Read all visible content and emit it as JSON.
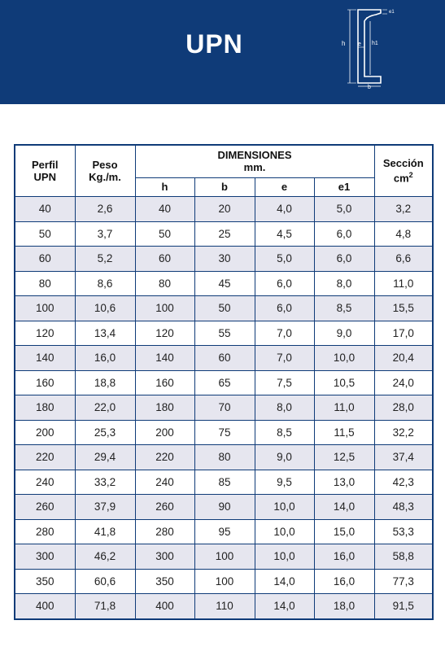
{
  "header": {
    "title": "UPN",
    "diagram_labels": {
      "e1": "e1",
      "h": "h",
      "e": "e",
      "h1": "h1",
      "b": "b",
      "r": "r"
    }
  },
  "table": {
    "col_perfil_line1": "Perfil",
    "col_perfil_line2": "UPN",
    "col_peso_line1": "Peso",
    "col_peso_line2": "Kg./m.",
    "col_dims_line1": "DIMENSIONES",
    "col_dims_line2": "mm.",
    "col_seccion_line1": "Sección",
    "col_seccion_line2": "cm",
    "col_seccion_sup": "2",
    "sub_h": "h",
    "sub_b": "b",
    "sub_e": "e",
    "sub_e1": "e1",
    "rows": [
      [
        "40",
        "2,6",
        "40",
        "20",
        "4,0",
        "5,0",
        "3,2"
      ],
      [
        "50",
        "3,7",
        "50",
        "25",
        "4,5",
        "6,0",
        "4,8"
      ],
      [
        "60",
        "5,2",
        "60",
        "30",
        "5,0",
        "6,0",
        "6,6"
      ],
      [
        "80",
        "8,6",
        "80",
        "45",
        "6,0",
        "8,0",
        "11,0"
      ],
      [
        "100",
        "10,6",
        "100",
        "50",
        "6,0",
        "8,5",
        "15,5"
      ],
      [
        "120",
        "13,4",
        "120",
        "55",
        "7,0",
        "9,0",
        "17,0"
      ],
      [
        "140",
        "16,0",
        "140",
        "60",
        "7,0",
        "10,0",
        "20,4"
      ],
      [
        "160",
        "18,8",
        "160",
        "65",
        "7,5",
        "10,5",
        "24,0"
      ],
      [
        "180",
        "22,0",
        "180",
        "70",
        "8,0",
        "11,0",
        "28,0"
      ],
      [
        "200",
        "25,3",
        "200",
        "75",
        "8,5",
        "11,5",
        "32,2"
      ],
      [
        "220",
        "29,4",
        "220",
        "80",
        "9,0",
        "12,5",
        "37,4"
      ],
      [
        "240",
        "33,2",
        "240",
        "85",
        "9,5",
        "13,0",
        "42,3"
      ],
      [
        "260",
        "37,9",
        "260",
        "90",
        "10,0",
        "14,0",
        "48,3"
      ],
      [
        "280",
        "41,8",
        "280",
        "95",
        "10,0",
        "15,0",
        "53,3"
      ],
      [
        "300",
        "46,2",
        "300",
        "100",
        "10,0",
        "16,0",
        "58,8"
      ],
      [
        "350",
        "60,6",
        "350",
        "100",
        "14,0",
        "16,0",
        "77,3"
      ],
      [
        "400",
        "71,8",
        "400",
        "110",
        "14,0",
        "18,0",
        "91,5"
      ]
    ]
  },
  "colors": {
    "brand_blue": "#0f3b78",
    "row_shade": "#e6e6ef"
  }
}
